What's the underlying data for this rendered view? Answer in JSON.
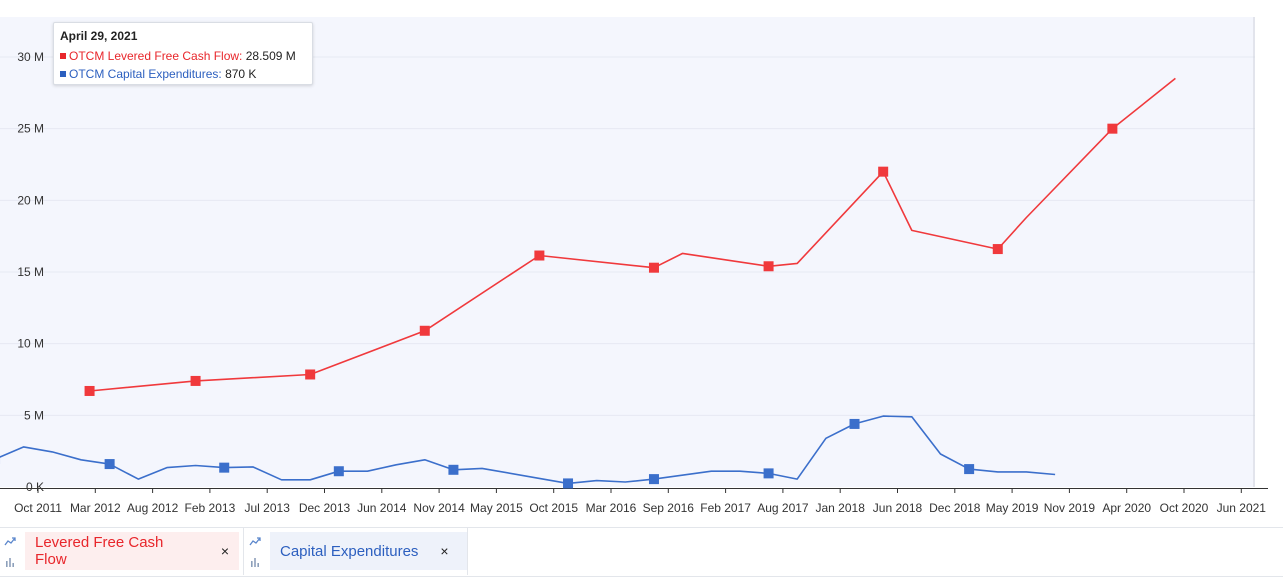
{
  "chart_data": {
    "type": "line",
    "y_ticks": [
      "0 K",
      "5 M",
      "10 M",
      "15 M",
      "20 M",
      "25 M",
      "30 M"
    ],
    "x_ticks": [
      "Oct 2011",
      "Mar 2012",
      "Aug 2012",
      "Feb 2013",
      "Jul 2013",
      "Dec 2013",
      "Jun 2014",
      "Nov 2014",
      "May 2015",
      "Oct 2015",
      "Mar 2016",
      "Sep 2016",
      "Feb 2017",
      "Aug 2017",
      "Jan 2018",
      "Jun 2018",
      "Dec 2018",
      "May 2019",
      "Nov 2019",
      "Apr 2020",
      "Oct 2020",
      "Jun 2021"
    ],
    "ylim": [
      0,
      32
    ],
    "grid": true,
    "series": [
      {
        "name": "Levered Free Cash Flow",
        "color": "#f0393c",
        "values": [
          6.7,
          7.4,
          7.85,
          10.9,
          16.15,
          15.3,
          16.3,
          15.4,
          15.6,
          22.0,
          17.9,
          16.6,
          18.8,
          25.0,
          28.509
        ],
        "markers": [
          0,
          1,
          2,
          3,
          4,
          5,
          7,
          9,
          11,
          13
        ],
        "x": [
          0.9,
          2.75,
          4.75,
          6.75,
          8.75,
          10.75,
          11.25,
          12.75,
          13.25,
          14.75,
          15.25,
          16.75,
          17.25,
          18.75,
          19.85
        ]
      },
      {
        "name": "Capital Expenditures",
        "color": "#3b6fcb",
        "values": [
          1.95,
          2.8,
          2.45,
          1.9,
          1.6,
          0.55,
          1.35,
          1.5,
          1.35,
          1.4,
          0.5,
          0.5,
          1.1,
          1.1,
          1.55,
          1.9,
          1.2,
          1.3,
          0.6,
          0.25,
          0.45,
          0.35,
          0.55,
          1.1,
          1.1,
          0.95,
          0.55,
          3.4,
          4.4,
          4.95,
          4.9,
          2.3,
          1.25,
          1.05,
          1.05,
          0.87
        ],
        "markers": [
          0,
          4,
          8,
          12,
          16,
          19,
          22,
          25,
          28,
          32
        ],
        "x": [
          -0.75,
          -0.25,
          0.25,
          0.75,
          1.25,
          1.75,
          2.25,
          2.75,
          3.25,
          3.75,
          4.25,
          4.75,
          5.25,
          5.75,
          6.25,
          6.75,
          7.25,
          7.75,
          8.75,
          9.25,
          9.75,
          10.25,
          10.75,
          11.75,
          12.25,
          12.75,
          13.25,
          13.75,
          14.25,
          14.75,
          15.25,
          15.75,
          16.25,
          16.75,
          17.25,
          17.75
        ]
      }
    ]
  },
  "tooltip": {
    "date": "April 29, 2021",
    "rows": [
      {
        "label": "OTCM Levered Free Cash Flow:",
        "value": "28.509 M",
        "color": "#e8262b"
      },
      {
        "label": "OTCM Capital Expenditures:",
        "value": "870 K",
        "color": "#2c5fbf"
      }
    ]
  },
  "legend": [
    {
      "label": "Levered Free Cash Flow",
      "close": "×",
      "bg": "#fdeeee",
      "color": "#e8262b"
    },
    {
      "label": "Capital Expenditures",
      "close": "×",
      "bg": "#eef2fa",
      "color": "#2c5fbf"
    }
  ]
}
